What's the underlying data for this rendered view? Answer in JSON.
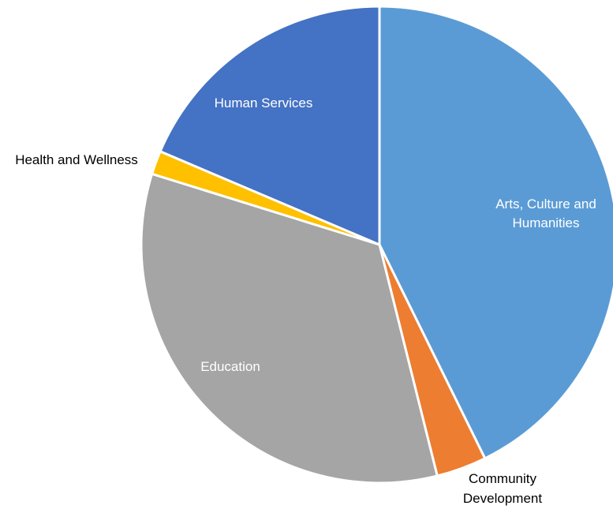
{
  "chart_data": {
    "type": "pie",
    "title": "",
    "start_angle_deg": 0,
    "direction": "clockwise",
    "slices": [
      {
        "label_lines": [
          "Arts, Culture and",
          "Humanities"
        ],
        "value": 42.7,
        "color": "#5B9BD5",
        "label_color": "#ffffff"
      },
      {
        "label_lines": [
          "Community",
          "Development"
        ],
        "value": 3.4,
        "color": "#ED7D31",
        "label_color": "#000000"
      },
      {
        "label_lines": [
          "Education"
        ],
        "value": 33.7,
        "color": "#A5A5A5",
        "label_color": "#ffffff"
      },
      {
        "label_lines": [
          "Health and Wellness"
        ],
        "value": 1.6,
        "color": "#FFC000",
        "label_color": "#000000"
      },
      {
        "label_lines": [
          "Human Services"
        ],
        "value": 18.6,
        "color": "#4472C4",
        "label_color": "#ffffff"
      }
    ]
  }
}
